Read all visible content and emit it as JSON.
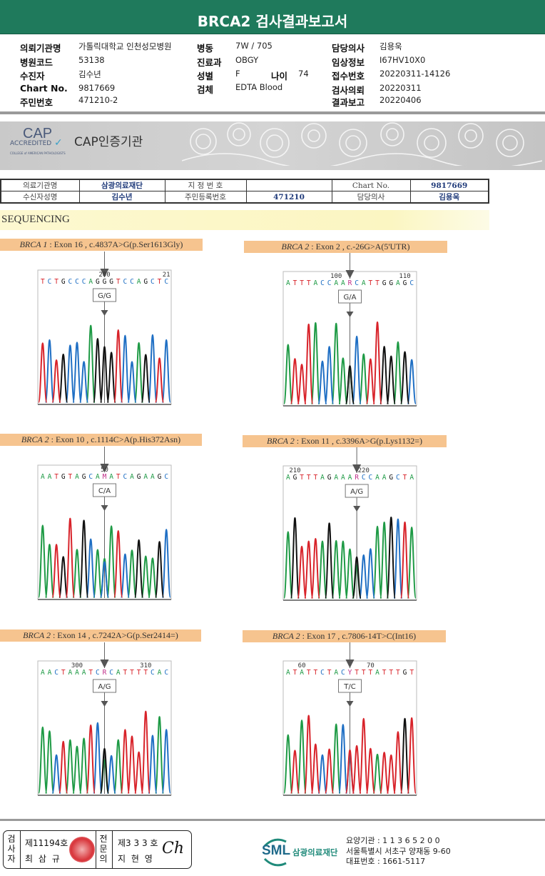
{
  "title": "BRCA2 검사결과보고서",
  "info": {
    "col1": [
      {
        "k": "의뢰기관명",
        "v": "가톨릭대학교 인천성모병원"
      },
      {
        "k": "병원코드",
        "v": "53138"
      },
      {
        "k": "수진자",
        "v": "김수년"
      },
      {
        "k": "Chart No.",
        "v": "9817669"
      },
      {
        "k": "주민번호",
        "v": "471210-2"
      }
    ],
    "col2": [
      {
        "k": "병동",
        "v": "7W / 705"
      },
      {
        "k": "진료과",
        "v": "OBGY"
      },
      {
        "k": "성별",
        "v": "F"
      },
      {
        "k": "검체",
        "v": "EDTA Blood"
      }
    ],
    "age": {
      "k": "나이",
      "v": "74"
    },
    "col3": [
      {
        "k": "담당의사",
        "v": "김용욱"
      },
      {
        "k": "임상정보",
        "v": "I67HV10X0"
      },
      {
        "k": "접수번호",
        "v": "20220311-14126"
      },
      {
        "k": "검사의뢰",
        "v": "20220311"
      },
      {
        "k": "결과보고",
        "v": "20220406"
      }
    ]
  },
  "cap": {
    "logo_big": "CAP",
    "logo_acc": "ACCREDITED",
    "logo_college": "COLLEGE of AMERICAN PATHOLOGISTS",
    "label": "CAP인증기관"
  },
  "report_table": {
    "r1": [
      "의료기관명",
      "삼광의료재단",
      "지 정 번 호",
      "",
      "Chart No.",
      "9817669"
    ],
    "r2": [
      "수신자성명",
      "김수년",
      "주민등록번호",
      "471210",
      "담당의사",
      "김용욱"
    ]
  },
  "section": "SEQUENCING",
  "panels": [
    {
      "gene": "BRCA 1",
      "desc": " : Exon 16 , c.4837A>G(p.Ser1613Gly)",
      "sequence": "TCTGCCCAGGGTCCAGCTC",
      "ticks": [
        {
          "label": "200",
          "base": 9
        },
        {
          "label": "21",
          "base": 18
        }
      ],
      "variant_base_index": 9,
      "genotype": "G/G"
    },
    {
      "gene": "BRCA 2",
      "desc": " : Exon 2 , c.-26G>A(5'UTR)",
      "sequence": "ATTTACCAARCATTGGAGC",
      "ticks": [
        {
          "label": "100",
          "base": 7
        },
        {
          "label": "110",
          "base": 17
        }
      ],
      "variant_base_index": 9,
      "genotype": "G/A"
    },
    {
      "gene": "BRCA 2",
      "desc": " : Exon 10 , c.1114C>A(p.His372Asn)",
      "sequence": "AATGTAGCAMATCAGAAGC",
      "ticks": [
        {
          "label": "50",
          "base": 9
        }
      ],
      "variant_base_index": 9,
      "genotype": "C/A"
    },
    {
      "gene": "BRCA 2",
      "desc": " : Exon 11 , c.3396A>G(p.Lys1132=)",
      "sequence": "AGTTTAGAAARCCAAGCTA",
      "ticks": [
        {
          "label": "210",
          "base": 1
        },
        {
          "label": "220",
          "base": 11
        }
      ],
      "variant_base_index": 10,
      "genotype": "A/G"
    },
    {
      "gene": "BRCA 2",
      "desc": " : Exon 14 , c.7242A>G(p.Ser2414=)",
      "sequence": "AACTAAATCRCATTTTCAC",
      "ticks": [
        {
          "label": "300",
          "base": 5
        },
        {
          "label": "310",
          "base": 15
        }
      ],
      "variant_base_index": 9,
      "genotype": "A/G"
    },
    {
      "gene": "BRCA 2",
      "desc": " : Exon 17 , c.7806-14T>C(Int16)",
      "sequence": "ATATTCTACYTTTATTTGT",
      "ticks": [
        {
          "label": "60",
          "base": 2
        },
        {
          "label": "70",
          "base": 12
        }
      ],
      "variant_base_index": 9,
      "genotype": "T/C"
    }
  ],
  "base_colors": {
    "A": "#1e9a45",
    "C": "#1f6fc4",
    "G": "#111111",
    "T": "#d8232a",
    "mixed": "#c0308a"
  },
  "signatures": {
    "examiner_label": "검사자",
    "examiner_no": "제11194호",
    "examiner_name": "최 삼 규",
    "specialist_label": "전문의",
    "specialist_no": "제3 3 3 호",
    "specialist_name": "지 현 영"
  },
  "footer": {
    "logo": "SML",
    "org": "삼광의료재단",
    "line1": "요양기관 : 1 1 3 6 5 2 0 0",
    "line2": "서울특별시 서초구 양재동 9-60",
    "line3": "대표번호 : 1661-5117"
  }
}
